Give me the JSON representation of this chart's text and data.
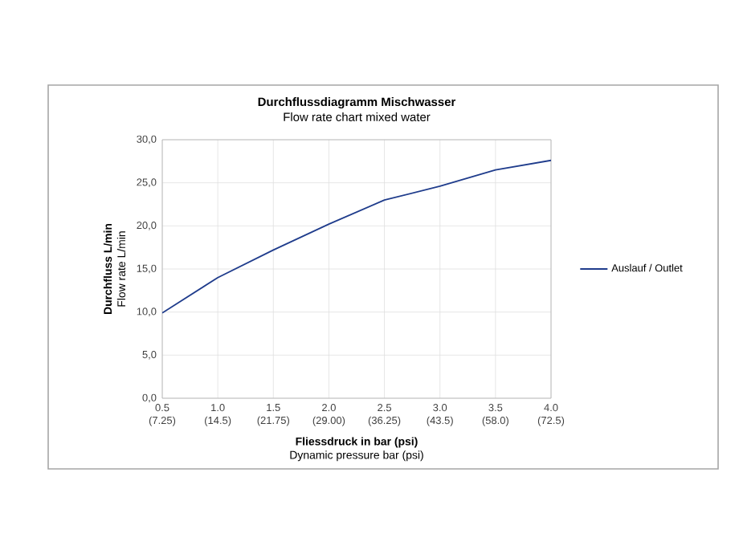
{
  "chart_data": {
    "type": "line",
    "title": "Durchflussdiagramm Mischwasser",
    "subtitle": "Flow rate chart mixed water",
    "xlabel": "Fliessdruck in bar (psi)",
    "ylabel": "Durchfluss L/min",
    "annotations": [
      "Flow rate L/min",
      "Dynamic pressure bar (psi)"
    ],
    "categories": [
      "0.5 (7.25)",
      "1.0 (14.5)",
      "1.5 (21.75)",
      "2.0 (29.00)",
      "2.5 (36.25)",
      "3.0 (43.5)",
      "3.5 (58.0)",
      "4.0 (72.5)"
    ],
    "series": [
      {
        "name": "Auslauf / Outlet",
        "color": "#1f3c8c",
        "values": [
          9.9,
          14.0,
          17.2,
          20.2,
          23.0,
          24.6,
          26.5,
          27.6
        ]
      }
    ],
    "ylim": [
      0,
      30
    ],
    "yticks": [
      {
        "value": 0,
        "label": "0,0"
      },
      {
        "value": 5,
        "label": "5,0"
      },
      {
        "value": 10,
        "label": "10,0"
      },
      {
        "value": 15,
        "label": "15,0"
      },
      {
        "value": 20,
        "label": "20,0"
      },
      {
        "value": 25,
        "label": "25,0"
      },
      {
        "value": 30,
        "label": "30,0"
      }
    ],
    "grid": true,
    "legend": "right",
    "marker": "none",
    "line_style": "solid"
  }
}
